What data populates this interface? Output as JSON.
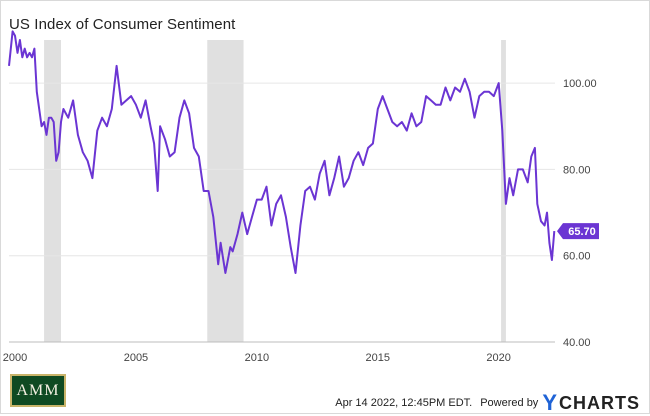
{
  "header": {
    "title": "US Index of Consumer Sentiment"
  },
  "footer": {
    "timestamp": "Apr 14 2022, 12:45PM EDT.",
    "powered_by": "Powered by",
    "brand_y": "Y",
    "brand_rest": "CHARTS",
    "logo_text": "AMM"
  },
  "colors": {
    "line": "#6b35d3",
    "recession": "#e0e0e0",
    "grid": "#e6e6e6",
    "label_badge": "#6b35d3"
  },
  "chart_data": {
    "type": "line",
    "title": "US Index of Consumer Sentiment",
    "xlabel": "",
    "ylabel": "",
    "xlim": [
      1999.75,
      2022.33
    ],
    "ylim": [
      40,
      110
    ],
    "grid": "horizontal",
    "x_ticks": [
      "2000",
      "2005",
      "2010",
      "2015",
      "2020"
    ],
    "y_ticks": [
      "40.00",
      "60.00",
      "80.00",
      "100.00"
    ],
    "last_value_label": "65.70",
    "recessions": [
      [
        2001.2,
        2001.9
      ],
      [
        2007.95,
        2009.45
      ],
      [
        2020.1,
        2020.3
      ]
    ],
    "series": [
      {
        "x": [
          1999.75,
          1999.9,
          2000.0,
          2000.1,
          2000.2,
          2000.3,
          2000.4,
          2000.5,
          2000.6,
          2000.7,
          2000.8,
          2000.9,
          2001.0,
          2001.1,
          2001.2,
          2001.3,
          2001.4,
          2001.5,
          2001.6,
          2001.7,
          2001.8,
          2001.9,
          2002.0,
          2002.2,
          2002.4,
          2002.6,
          2002.8,
          2003.0,
          2003.2,
          2003.4,
          2003.6,
          2003.8,
          2004.0,
          2004.2,
          2004.4,
          2004.6,
          2004.8,
          2005.0,
          2005.2,
          2005.4,
          2005.6,
          2005.75,
          2005.9,
          2006.0,
          2006.2,
          2006.4,
          2006.6,
          2006.8,
          2007.0,
          2007.2,
          2007.4,
          2007.6,
          2007.8,
          2008.0,
          2008.2,
          2008.4,
          2008.5,
          2008.7,
          2008.9,
          2009.0,
          2009.2,
          2009.4,
          2009.6,
          2009.8,
          2010.0,
          2010.2,
          2010.4,
          2010.6,
          2010.8,
          2011.0,
          2011.2,
          2011.4,
          2011.6,
          2011.8,
          2012.0,
          2012.2,
          2012.4,
          2012.6,
          2012.8,
          2013.0,
          2013.2,
          2013.4,
          2013.6,
          2013.8,
          2014.0,
          2014.2,
          2014.4,
          2014.6,
          2014.8,
          2015.0,
          2015.2,
          2015.4,
          2015.6,
          2015.8,
          2016.0,
          2016.2,
          2016.4,
          2016.6,
          2016.8,
          2017.0,
          2017.2,
          2017.4,
          2017.6,
          2017.8,
          2018.0,
          2018.2,
          2018.4,
          2018.6,
          2018.8,
          2019.0,
          2019.2,
          2019.4,
          2019.6,
          2019.8,
          2020.0,
          2020.15,
          2020.3,
          2020.45,
          2020.6,
          2020.8,
          2021.0,
          2021.2,
          2021.35,
          2021.5,
          2021.6,
          2021.75,
          2021.9,
          2022.0,
          2022.1,
          2022.2,
          2022.3
        ],
        "y": [
          104,
          112,
          111,
          107,
          110,
          106,
          108,
          106,
          107,
          106,
          108,
          98,
          94,
          90,
          91,
          88,
          92,
          92,
          91,
          82,
          84,
          91,
          94,
          92,
          96,
          88,
          84,
          82,
          78,
          89,
          92,
          90,
          94,
          104,
          95,
          96,
          97,
          95,
          92,
          96,
          90,
          86,
          75,
          90,
          87,
          83,
          84,
          92,
          96,
          93,
          85,
          83,
          75,
          75,
          69,
          58,
          63,
          56,
          62,
          61,
          65,
          70,
          65,
          69,
          73,
          73,
          76,
          67,
          72,
          74,
          69,
          62,
          56,
          67,
          75,
          76,
          73,
          79,
          82,
          74,
          78,
          83,
          76,
          78,
          82,
          84,
          81,
          85,
          86,
          94,
          97,
          94,
          91,
          90,
          91,
          89,
          93,
          90,
          91,
          97,
          96,
          95,
          95,
          99,
          96,
          99,
          98,
          101,
          98,
          92,
          97,
          98,
          98,
          97,
          100,
          89,
          72,
          78,
          74,
          80,
          80,
          77,
          83,
          85,
          72,
          68,
          67,
          70,
          63,
          59,
          65.7
        ]
      }
    ]
  }
}
